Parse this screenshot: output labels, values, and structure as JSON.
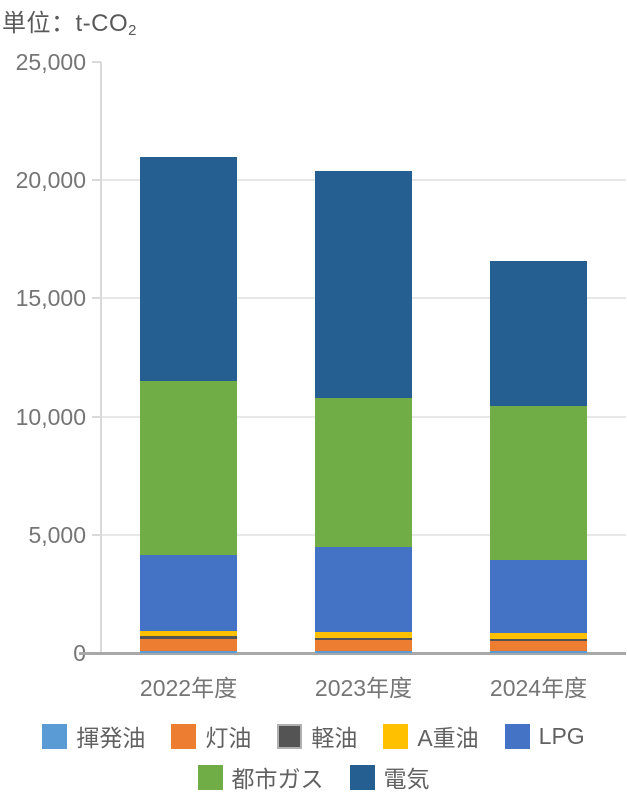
{
  "title": {
    "prefix": "単位：t-CO",
    "subscript": "2"
  },
  "chart_data": {
    "type": "bar",
    "stacked": true,
    "title": "単位：t-CO2",
    "xlabel": "",
    "ylabel": "t-CO2",
    "categories": [
      "2022年度",
      "2023年度",
      "2024年度"
    ],
    "series": [
      {
        "name": "揮発油",
        "color": "#5B9BD5",
        "values": [
          100,
          100,
          100
        ]
      },
      {
        "name": "灯油",
        "color": "#ED7D31",
        "values": [
          500,
          430,
          400
        ]
      },
      {
        "name": "軽油",
        "color": "#545454",
        "border": "#b0b0b0",
        "values": [
          100,
          100,
          100
        ]
      },
      {
        "name": "A重油",
        "color": "#FFC000",
        "values": [
          250,
          250,
          250
        ]
      },
      {
        "name": "LPG",
        "color": "#4472C4",
        "values": [
          3200,
          3600,
          3100
        ]
      },
      {
        "name": "都市ガス",
        "color": "#70AD47",
        "values": [
          7350,
          6300,
          6500
        ]
      },
      {
        "name": "電気",
        "color": "#255E91",
        "values": [
          9500,
          9620,
          6150
        ]
      }
    ],
    "totals": [
      21000,
      20400,
      16600
    ],
    "ylim": [
      0,
      25000
    ],
    "y_ticks": [
      "0",
      "5,000",
      "10,000",
      "15,000",
      "20,000",
      "25,000"
    ],
    "grid": true,
    "legend_position": "bottom"
  },
  "style_colors": {
    "gridline": "#e7e7e7",
    "axis_line": "#d9d9d9",
    "baseline": "#a8a8a8",
    "tick_text": "#757575",
    "title_text": "#595959",
    "legend_text": "#616161"
  }
}
